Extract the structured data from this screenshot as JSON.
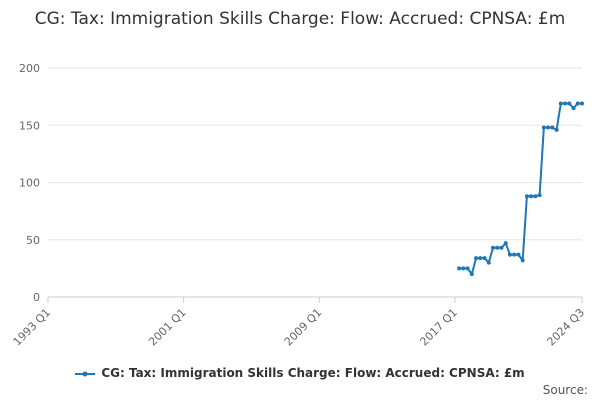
{
  "chart_data": {
    "type": "line",
    "title": "CG: Tax: Immigration Skills Charge: Flow: Accrued: CPNSA: £m",
    "xlabel": "",
    "ylabel": "",
    "x_range": [
      "1993 Q1",
      "2024 Q3"
    ],
    "ylim": [
      0,
      200
    ],
    "y_ticks": [
      0,
      50,
      100,
      150,
      200
    ],
    "x_tick_labels": [
      "1993 Q1",
      "2001 Q1",
      "2009 Q1",
      "2017 Q1",
      "2024 Q3"
    ],
    "grid": true,
    "legend_position": "bottom",
    "series": [
      {
        "name": "CG: Tax: Immigration Skills Charge: Flow: Accrued: CPNSA: £m",
        "color": "#1f77b4",
        "points": [
          [
            "2017 Q2",
            25
          ],
          [
            "2017 Q3",
            25
          ],
          [
            "2017 Q4",
            25
          ],
          [
            "2018 Q1",
            20
          ],
          [
            "2018 Q2",
            34
          ],
          [
            "2018 Q3",
            34
          ],
          [
            "2018 Q4",
            34
          ],
          [
            "2019 Q1",
            30
          ],
          [
            "2019 Q2",
            43
          ],
          [
            "2019 Q3",
            43
          ],
          [
            "2019 Q4",
            43
          ],
          [
            "2020 Q1",
            47
          ],
          [
            "2020 Q2",
            37
          ],
          [
            "2020 Q3",
            37
          ],
          [
            "2020 Q4",
            37
          ],
          [
            "2021 Q1",
            32
          ],
          [
            "2021 Q2",
            88
          ],
          [
            "2021 Q3",
            88
          ],
          [
            "2021 Q4",
            88
          ],
          [
            "2022 Q1",
            89
          ],
          [
            "2022 Q2",
            148
          ],
          [
            "2022 Q3",
            148
          ],
          [
            "2022 Q4",
            148
          ],
          [
            "2023 Q1",
            146
          ],
          [
            "2023 Q2",
            169
          ],
          [
            "2023 Q3",
            169
          ],
          [
            "2023 Q4",
            169
          ],
          [
            "2024 Q1",
            165
          ],
          [
            "2024 Q2",
            169
          ],
          [
            "2024 Q3",
            169
          ]
        ]
      }
    ]
  },
  "legend": {
    "label": "CG: Tax: Immigration Skills Charge: Flow: Accrued: CPNSA: £m"
  },
  "source": {
    "label": "Source:"
  }
}
